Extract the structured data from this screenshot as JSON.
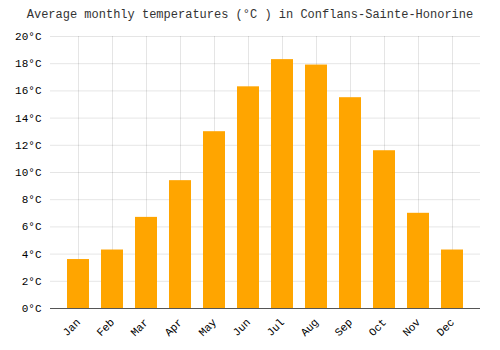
{
  "chart_data": {
    "type": "bar",
    "title": "Average monthly temperatures (°C ) in Conflans-Sainte-Honorine",
    "categories": [
      "Jan",
      "Feb",
      "Mar",
      "Apr",
      "May",
      "Jun",
      "Jul",
      "Aug",
      "Sep",
      "Oct",
      "Nov",
      "Dec"
    ],
    "values": [
      3.6,
      4.3,
      6.7,
      9.4,
      13.0,
      16.3,
      18.3,
      17.9,
      15.5,
      11.6,
      7.0,
      4.3
    ],
    "color": "#FFA500",
    "ylim": [
      0,
      20
    ],
    "yticks": [
      {
        "value": 0,
        "label": "0°C"
      },
      {
        "value": 2,
        "label": "2°C"
      },
      {
        "value": 4,
        "label": "4°C"
      },
      {
        "value": 6,
        "label": "6°C"
      },
      {
        "value": 8,
        "label": "8°C"
      },
      {
        "value": 10,
        "label": "10°C"
      },
      {
        "value": 12,
        "label": "12°C"
      },
      {
        "value": 14,
        "label": "14°C"
      },
      {
        "value": 16,
        "label": "16°C"
      },
      {
        "value": 18,
        "label": "18°C"
      },
      {
        "value": 20,
        "label": "20°C"
      }
    ],
    "grid": true
  }
}
